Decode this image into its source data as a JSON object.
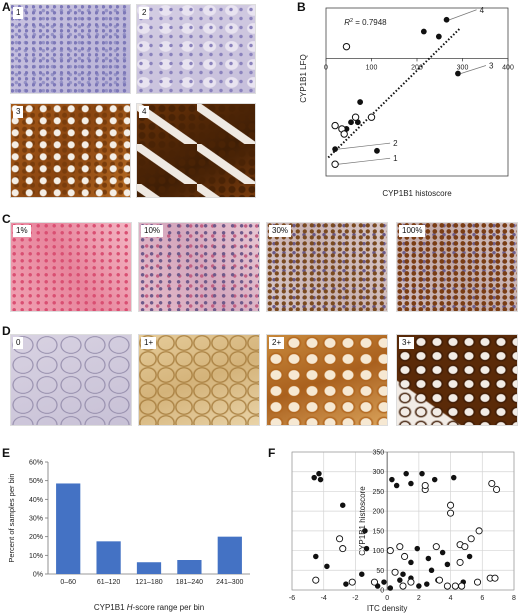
{
  "panels": {
    "A": {
      "letter": "A",
      "tiles": [
        {
          "label": "1",
          "stain": "weak-hematoxylin"
        },
        {
          "label": "2",
          "stain": "weak-hematoxylin"
        },
        {
          "label": "3",
          "stain": "strong-dab"
        },
        {
          "label": "4",
          "stain": "strong-dab"
        }
      ]
    },
    "B": {
      "letter": "B"
    },
    "C": {
      "letter": "C",
      "tiles": [
        {
          "label": "1%"
        },
        {
          "label": "10%"
        },
        {
          "label": "30%"
        },
        {
          "label": "100%"
        }
      ]
    },
    "D": {
      "letter": "D",
      "tiles": [
        {
          "label": "0"
        },
        {
          "label": "1+"
        },
        {
          "label": "2+"
        },
        {
          "label": "3+"
        }
      ]
    },
    "E": {
      "letter": "E"
    },
    "F": {
      "letter": "F"
    }
  },
  "chart_data": [
    {
      "panel": "B",
      "type": "scatter",
      "xlabel": "CYP1B1 histoscore",
      "ylabel": "CYP1B1 LFQ",
      "annotation": {
        "prefix": "R",
        "sup": "2",
        "text": " = 0.7948"
      },
      "xlim": [
        0,
        400
      ],
      "ylim": [
        -7,
        3
      ],
      "xticks": [
        0,
        100,
        200,
        300,
        400
      ],
      "x_axis_at_y": 0,
      "grid": false,
      "trendline": {
        "style": "dotted",
        "from": [
          5,
          -5.9
        ],
        "to": [
          295,
          1.8
        ]
      },
      "series": [
        {
          "marker": "filled",
          "points": [
            [
              265,
              2.3
            ],
            [
              248,
              1.3
            ],
            [
              215,
              1.6
            ],
            [
              290,
              -0.9
            ],
            [
              112,
              -5.5
            ],
            [
              20,
              -5.4
            ],
            [
              75,
              -2.6
            ],
            [
              55,
              -3.8
            ],
            [
              70,
              -3.8
            ],
            [
              45,
              -4.2
            ]
          ]
        },
        {
          "marker": "open",
          "points": [
            [
              45,
              0.7
            ],
            [
              20,
              -4.0
            ],
            [
              35,
              -4.2
            ],
            [
              65,
              -3.5
            ],
            [
              100,
              -3.5
            ],
            [
              20,
              -6.3
            ],
            [
              40,
              -4.5
            ]
          ]
        }
      ],
      "callouts": [
        {
          "label": "4",
          "point": [
            265,
            2.3
          ]
        },
        {
          "label": "3",
          "point": [
            290,
            -0.9
          ]
        },
        {
          "label": "2",
          "point": [
            20,
            -5.4
          ]
        },
        {
          "label": "1",
          "point": [
            20,
            -6.3
          ]
        }
      ]
    },
    {
      "panel": "E",
      "type": "bar",
      "xlabel_parts": [
        "CYP1B1 ",
        "H",
        "-score range per bin"
      ],
      "ylabel": "Percent of samples per bin",
      "categories": [
        "0–60",
        "61–120",
        "121–180",
        "181–240",
        "241–300"
      ],
      "values": [
        48.5,
        17.5,
        6.3,
        7.5,
        20.0
      ],
      "ylim": [
        0,
        60
      ],
      "yticks": [
        "0%",
        "10%",
        "20%",
        "30%",
        "40%",
        "50%",
        "60%"
      ],
      "bar_color": "#4472c4"
    },
    {
      "panel": "F",
      "type": "scatter",
      "xlabel": "ITC density",
      "ylabel": "CYP1B1 histoscore",
      "xlim": [
        -6,
        8
      ],
      "ylim": [
        0,
        350
      ],
      "xticks": [
        -6,
        -4,
        -2,
        0,
        2,
        4,
        6,
        8
      ],
      "yticks": [
        0,
        50,
        100,
        150,
        200,
        250,
        300,
        350
      ],
      "y_axis_at_x": 0,
      "grid": true,
      "series": [
        {
          "marker": "filled",
          "points": [
            [
              -4.6,
              285
            ],
            [
              -4.3,
              295
            ],
            [
              -4.2,
              280
            ],
            [
              -2.8,
              215
            ],
            [
              -4.5,
              85
            ],
            [
              -3.8,
              60
            ],
            [
              -1.4,
              150
            ],
            [
              -1.3,
              105
            ],
            [
              -2.6,
              15
            ],
            [
              -1.6,
              40
            ],
            [
              -0.2,
              20
            ],
            [
              0.3,
              280
            ],
            [
              1.2,
              295
            ],
            [
              1.5,
              270
            ],
            [
              2.2,
              295
            ],
            [
              3.0,
              280
            ],
            [
              1.0,
              40
            ],
            [
              1.5,
              70
            ],
            [
              2.8,
              50
            ],
            [
              3.5,
              95
            ],
            [
              4.2,
              285
            ],
            [
              5.2,
              85
            ],
            [
              0.2,
              5
            ],
            [
              0.8,
              25
            ],
            [
              1.5,
              30
            ],
            [
              2.5,
              15
            ],
            [
              3.2,
              25
            ],
            [
              3.8,
              65
            ],
            [
              4.8,
              20
            ],
            [
              1.9,
              105
            ],
            [
              2.6,
              80
            ],
            [
              -0.6,
              10
            ],
            [
              0.6,
              265
            ],
            [
              2.0,
              10
            ]
          ]
        },
        {
          "marker": "open",
          "points": [
            [
              -4.5,
              25
            ],
            [
              -3.0,
              130
            ],
            [
              -2.8,
              105
            ],
            [
              -2.2,
              20
            ],
            [
              -0.8,
              20
            ],
            [
              0.2,
              100
            ],
            [
              0.8,
              110
            ],
            [
              1.0,
              10
            ],
            [
              1.5,
              20
            ],
            [
              2.4,
              255
            ],
            [
              2.4,
              265
            ],
            [
              3.1,
              110
            ],
            [
              3.3,
              25
            ],
            [
              4.0,
              195
            ],
            [
              4.0,
              215
            ],
            [
              4.6,
              115
            ],
            [
              4.9,
              110
            ],
            [
              4.6,
              70
            ],
            [
              5.3,
              130
            ],
            [
              5.8,
              150
            ],
            [
              6.6,
              270
            ],
            [
              6.9,
              255
            ],
            [
              6.5,
              30
            ],
            [
              6.8,
              30
            ],
            [
              0.5,
              45
            ],
            [
              1.1,
              85
            ],
            [
              3.8,
              10
            ],
            [
              4.3,
              10
            ],
            [
              4.7,
              10
            ],
            [
              5.7,
              20
            ]
          ]
        }
      ]
    }
  ]
}
